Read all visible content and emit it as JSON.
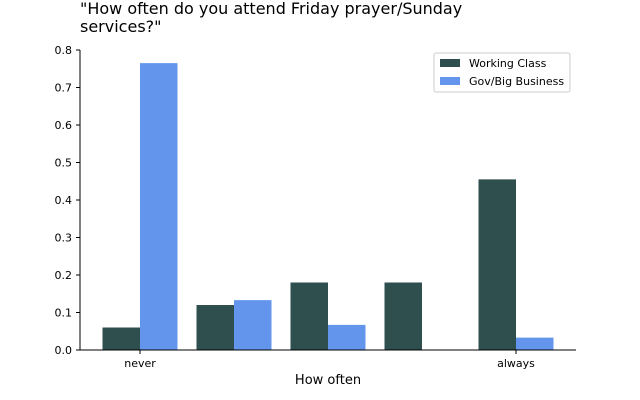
{
  "chart_data": {
    "type": "bar",
    "title": "\"How often do you attend Friday prayer/Sunday services?\"",
    "title_lines": [
      "\"How often do you attend Friday prayer/Sunday",
      "services?\""
    ],
    "xlabel": "How often",
    "ylabel": "",
    "categories": [
      "never",
      "",
      "",
      "",
      "always"
    ],
    "ylim": [
      0,
      0.8
    ],
    "yticks": [
      0.0,
      0.1,
      0.2,
      0.3,
      0.4,
      0.5,
      0.6,
      0.7,
      0.8
    ],
    "ytick_labels": [
      "0.0",
      "0.1",
      "0.2",
      "0.3",
      "0.4",
      "0.5",
      "0.6",
      "0.7",
      "0.8"
    ],
    "grid": false,
    "legend_position": "top-right",
    "series": [
      {
        "name": "Working Class",
        "color": "#2f4f4f",
        "values": [
          0.06,
          0.12,
          0.18,
          0.18,
          0.455
        ]
      },
      {
        "name": "Gov/Big Business",
        "color": "#6495ed",
        "values": [
          0.765,
          0.133,
          0.067,
          0.0,
          0.033
        ]
      }
    ]
  }
}
